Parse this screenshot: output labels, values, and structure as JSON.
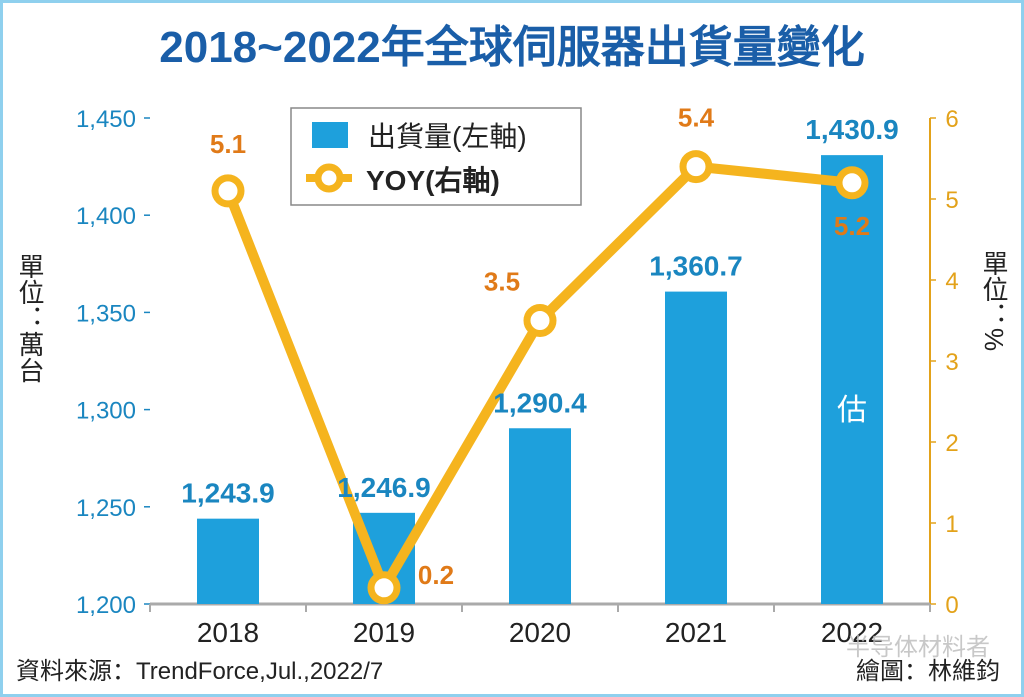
{
  "chart_data": {
    "type": "bar+line",
    "title": "2018~2022年全球伺服器出貨量變化",
    "categories": [
      "2018",
      "2019",
      "2020",
      "2021",
      "2022"
    ],
    "series": [
      {
        "name": "出貨量(左軸)",
        "type": "bar",
        "axis": "left",
        "values": [
          1243.9,
          1246.9,
          1290.4,
          1360.7,
          1430.9
        ],
        "labels": [
          "1,243.9",
          "1,246.9",
          "1,290.4",
          "1,360.7",
          "1,430.9"
        ],
        "color": "#1ea0dc"
      },
      {
        "name": "YOY(右軸)",
        "type": "line",
        "axis": "right",
        "values": [
          5.1,
          0.2,
          3.5,
          5.4,
          5.2
        ],
        "labels": [
          "5.1",
          "0.2",
          "3.5",
          "5.4",
          "5.2"
        ],
        "color": "#f5b41e"
      }
    ],
    "left_axis": {
      "label": "單位：萬台",
      "ylim": [
        1200,
        1450
      ],
      "ticks": [
        "1,200",
        "1,250",
        "1,300",
        "1,350",
        "1,400",
        "1,450"
      ],
      "tick_values": [
        1200,
        1250,
        1300,
        1350,
        1400,
        1450
      ]
    },
    "right_axis": {
      "label": "單位：%",
      "ylim": [
        0,
        6
      ],
      "ticks": [
        "0",
        "1",
        "2",
        "3",
        "4",
        "5",
        "6"
      ],
      "tick_values": [
        0,
        1,
        2,
        3,
        4,
        5,
        6
      ]
    },
    "bar_annotation": {
      "category": "2022",
      "text": "估"
    },
    "legend": "top-left",
    "grid": false
  },
  "footer": {
    "source": "資料來源：TrendForce,Jul.,2022/7",
    "credit": "繪圖：林維鈞",
    "watermark": "半导体材料者"
  }
}
